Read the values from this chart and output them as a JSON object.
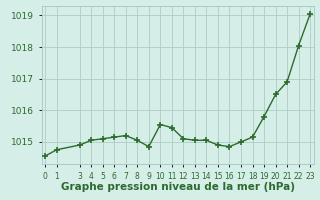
{
  "x": [
    0,
    1,
    3,
    4,
    5,
    6,
    7,
    8,
    9,
    10,
    11,
    12,
    13,
    14,
    15,
    16,
    17,
    18,
    19,
    20,
    21,
    22,
    23
  ],
  "y": [
    1014.55,
    1014.75,
    1014.9,
    1015.05,
    1015.1,
    1015.15,
    1015.2,
    1015.05,
    1014.85,
    1015.55,
    1015.45,
    1015.1,
    1015.05,
    1015.05,
    1014.9,
    1014.85,
    1015.0,
    1015.15,
    1015.8,
    1016.5,
    1016.9,
    1018.05,
    1019.05
  ],
  "line_color": "#2d6a2d",
  "marker_color": "#2d6a2d",
  "bg_color": "#d5eee8",
  "grid_color": "#aaccc4",
  "xlabel": "Graphe pression niveau de la mer (hPa)",
  "ylim": [
    1014.3,
    1019.3
  ],
  "yticks": [
    1015,
    1016,
    1017,
    1018,
    1019
  ],
  "xtick_vals": [
    0,
    1,
    3,
    4,
    5,
    6,
    7,
    8,
    9,
    10,
    11,
    12,
    13,
    14,
    15,
    16,
    17,
    18,
    19,
    20,
    21,
    22,
    23
  ],
  "xlim": [
    -0.3,
    23.3
  ],
  "font_color": "#2d6a2d",
  "ytick_fontsize": 6.5,
  "xtick_fontsize": 5.5,
  "xlabel_fontsize": 7.5,
  "line_width": 1.0,
  "marker_size": 4
}
